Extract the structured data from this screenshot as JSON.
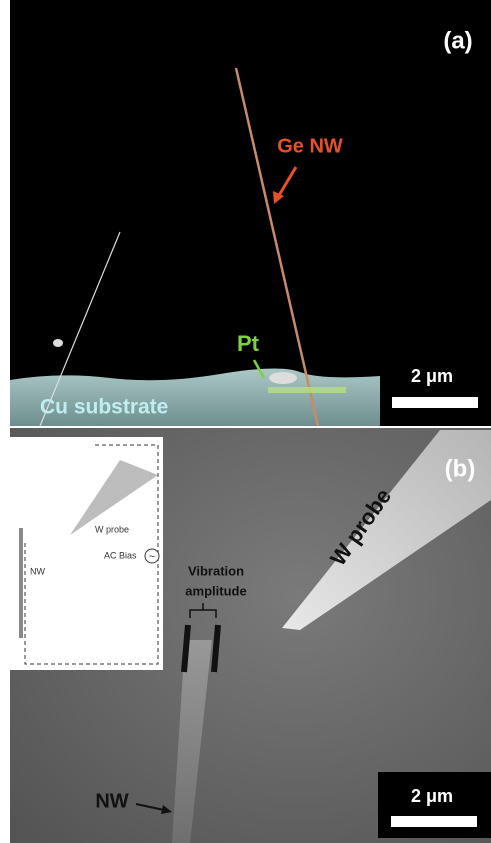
{
  "panel_a": {
    "label": "(a)",
    "nanowire": "Ge NW",
    "deposit": "Pt",
    "substrate": "Cu substrate",
    "scale_bar": "2 μm"
  },
  "panel_b": {
    "label": "(b)",
    "probe": "W probe",
    "vibration": [
      "Vibration",
      "amplitude"
    ],
    "nanowire": "NW",
    "scale_bar": "2 μm",
    "inset": {
      "probe": "W probe",
      "bias": "AC Bias",
      "bias_symbol": "~",
      "nanowire": "NW"
    }
  }
}
